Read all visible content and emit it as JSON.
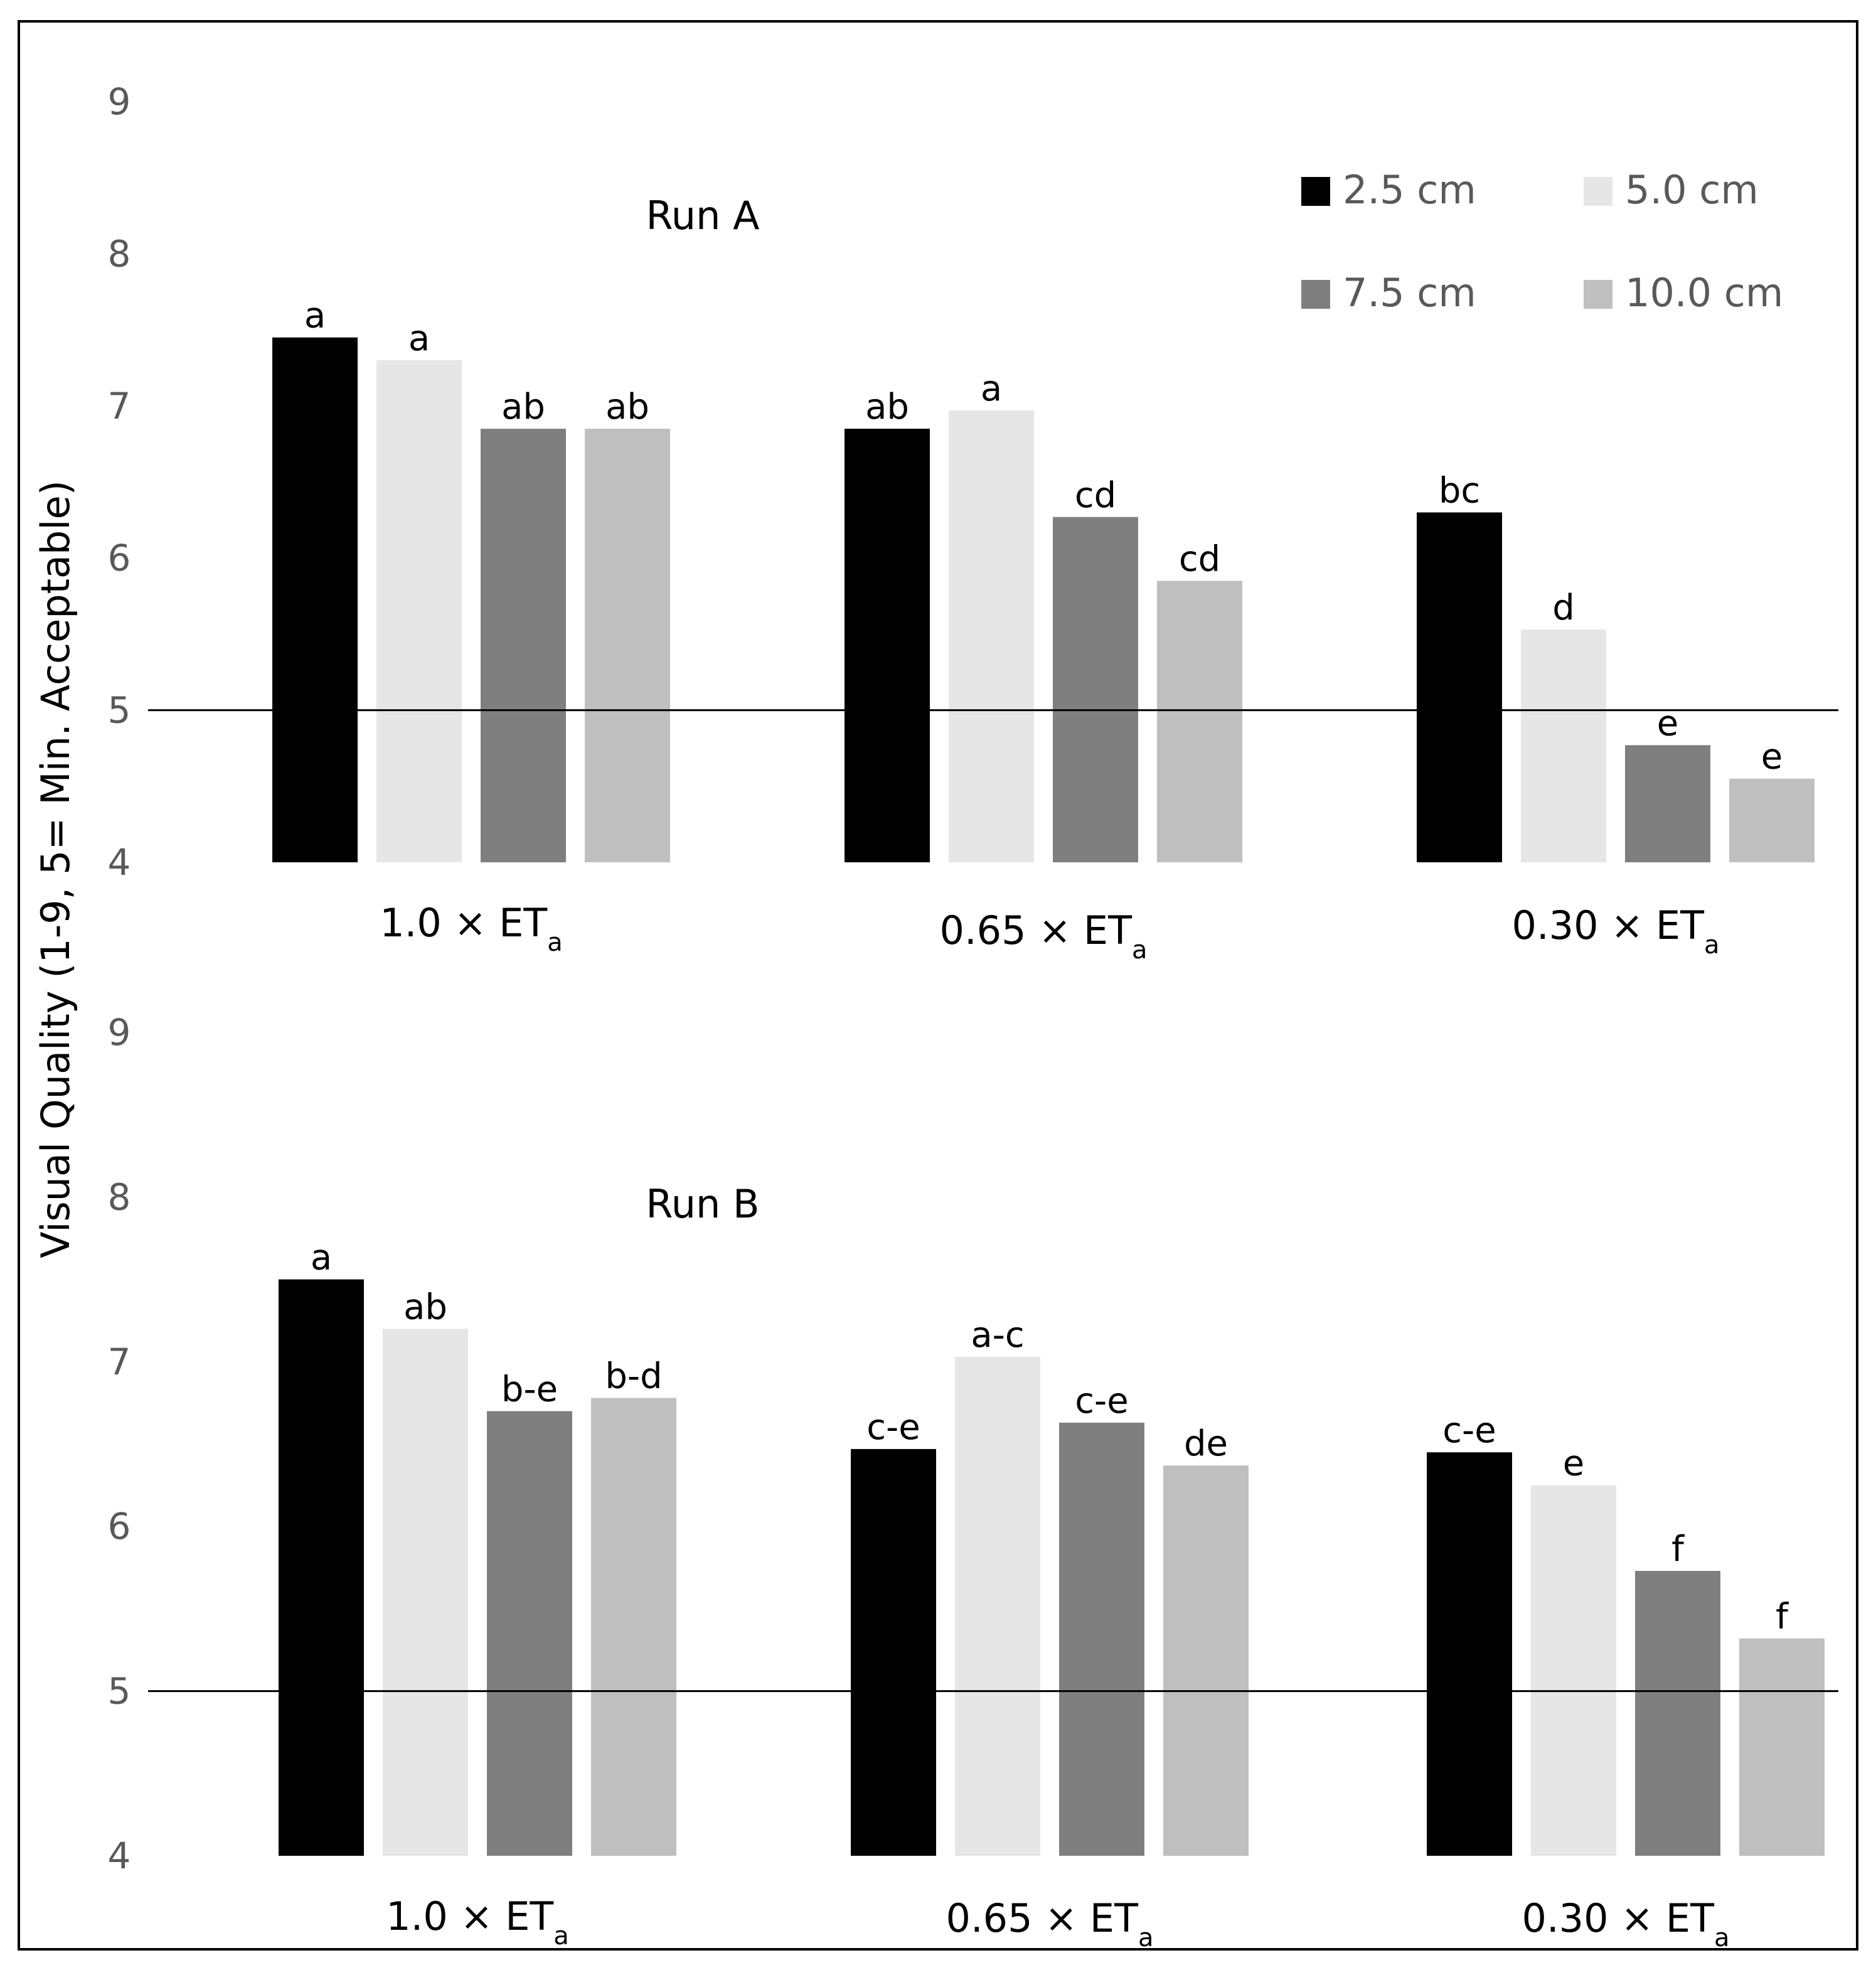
{
  "figure": {
    "ylabel": "Visual Quality (1-9, 5= Min. Acceptable)",
    "legend": [
      {
        "label": "2.5 cm",
        "color": "#000000"
      },
      {
        "label": "5.0 cm",
        "color": "#e6e6e6"
      },
      {
        "label": "7.5 cm",
        "color": "#7f7f7f"
      },
      {
        "label": "10.0 cm",
        "color": "#bfbfbf"
      }
    ],
    "colors": {
      "frame": "#000000",
      "reference_line": "#000000",
      "tick_text": "#595959",
      "text": "#000000"
    }
  },
  "chart_data": [
    {
      "type": "bar",
      "title": "Run A",
      "categories": [
        "1.0 × ET",
        "0.65 × ET",
        "0.30 × ET"
      ],
      "category_subscript": "a",
      "ylabel": "Visual Quality (1-9, 5= Min. Acceptable)",
      "ylim": [
        4,
        9
      ],
      "yticks": [
        "4",
        "5",
        "6",
        "7",
        "8",
        "9"
      ],
      "reference_line": 5,
      "grid": false,
      "legend_position": "top-right",
      "series": [
        {
          "name": "2.5 cm",
          "values": [
            7.45,
            6.85,
            6.3
          ],
          "letters": [
            "a",
            "ab",
            "bc"
          ]
        },
        {
          "name": "5.0 cm",
          "values": [
            7.3,
            6.97,
            5.53
          ],
          "letters": [
            "a",
            "a",
            "d"
          ]
        },
        {
          "name": "7.5 cm",
          "values": [
            6.85,
            6.27,
            4.77
          ],
          "letters": [
            "ab",
            "cd",
            "e"
          ]
        },
        {
          "name": "10.0 cm",
          "values": [
            6.85,
            5.85,
            4.55
          ],
          "letters": [
            "ab",
            "cd",
            "e"
          ]
        }
      ]
    },
    {
      "type": "bar",
      "title": "Run B",
      "categories": [
        "1.0 × ET",
        "0.65 × ET",
        "0.30 × ET"
      ],
      "category_subscript": "a",
      "ylabel": "Visual Quality (1-9, 5= Min. Acceptable)",
      "ylim": [
        4,
        9
      ],
      "yticks": [
        "4",
        "5",
        "6",
        "7",
        "8",
        "9"
      ],
      "reference_line": 5,
      "grid": false,
      "series": [
        {
          "name": "2.5 cm",
          "values": [
            7.5,
            6.47,
            6.45
          ],
          "letters": [
            "a",
            "c-e",
            "c-e"
          ]
        },
        {
          "name": "5.0 cm",
          "values": [
            7.2,
            7.03,
            6.25
          ],
          "letters": [
            "ab",
            "a-c",
            "e"
          ]
        },
        {
          "name": "7.5 cm",
          "values": [
            6.7,
            6.63,
            5.73
          ],
          "letters": [
            "b-e",
            "c-e",
            "f"
          ]
        },
        {
          "name": "10.0 cm",
          "values": [
            6.78,
            6.37,
            5.32
          ],
          "letters": [
            "b-d",
            "de",
            "f"
          ]
        }
      ]
    }
  ]
}
